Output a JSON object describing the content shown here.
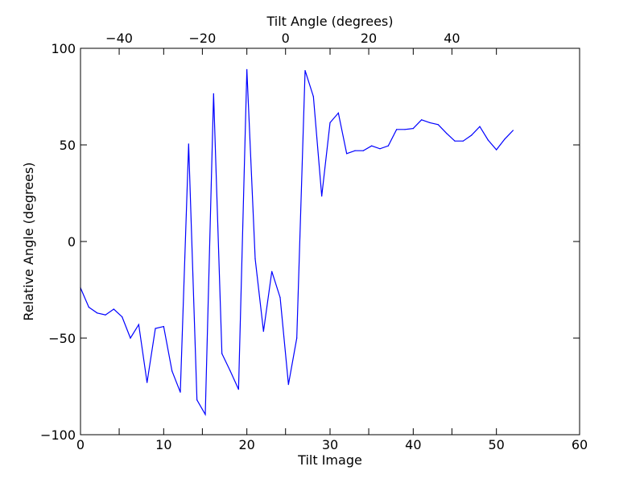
{
  "chart_data": {
    "type": "line",
    "title": "",
    "xlabel": "Tilt Image",
    "ylabel": "Relative Angle (degrees)",
    "top_xlabel": "Tilt Angle (degrees)",
    "xlim": [
      0,
      60
    ],
    "ylim": [
      -100,
      100
    ],
    "top_xlim": [
      -49.3,
      70.7
    ],
    "xticks": [
      0,
      10,
      20,
      30,
      40,
      50,
      60
    ],
    "yticks": [
      -100,
      -50,
      0,
      50,
      100
    ],
    "top_xticks": [
      -40,
      -20,
      0,
      20,
      40
    ],
    "xtick_labels": [
      "0",
      "10",
      "20",
      "30",
      "40",
      "50",
      "60"
    ],
    "ytick_labels": [
      "−100",
      "−50",
      "0",
      "50",
      "100"
    ],
    "top_xtick_labels": [
      "−40",
      "−20",
      "0",
      "20",
      "40"
    ],
    "grid": false,
    "legend": "none",
    "series": [
      {
        "color": "#0000ff",
        "x": [
          0,
          1,
          2,
          3,
          4,
          5,
          6,
          7,
          8,
          9,
          10,
          11,
          12,
          13,
          14,
          15,
          16,
          17,
          18,
          19,
          20,
          21,
          22,
          23,
          24,
          25,
          26,
          27,
          28,
          29,
          30,
          31,
          32,
          33,
          34,
          35,
          36,
          37,
          38,
          39,
          40,
          41,
          42,
          43,
          44,
          45,
          46,
          47,
          48,
          49,
          50,
          51,
          52
        ],
        "y": [
          -24,
          -34,
          -37,
          -38,
          -35,
          -39,
          -50,
          -43,
          -73,
          -45,
          -44,
          -67,
          -78,
          50.5,
          -82,
          -89.5,
          76.5,
          -58,
          -67,
          -76.5,
          89,
          -9,
          -46.5,
          -15.5,
          -29,
          -74,
          -50,
          88.5,
          75,
          23.5,
          61.5,
          66.5,
          45.5,
          47,
          47,
          49.5,
          48,
          49.5,
          58,
          58,
          58.5,
          63,
          61.5,
          60.5,
          56,
          52,
          52,
          55,
          59.5,
          52.5,
          47.5,
          53,
          57.5
        ]
      }
    ]
  }
}
